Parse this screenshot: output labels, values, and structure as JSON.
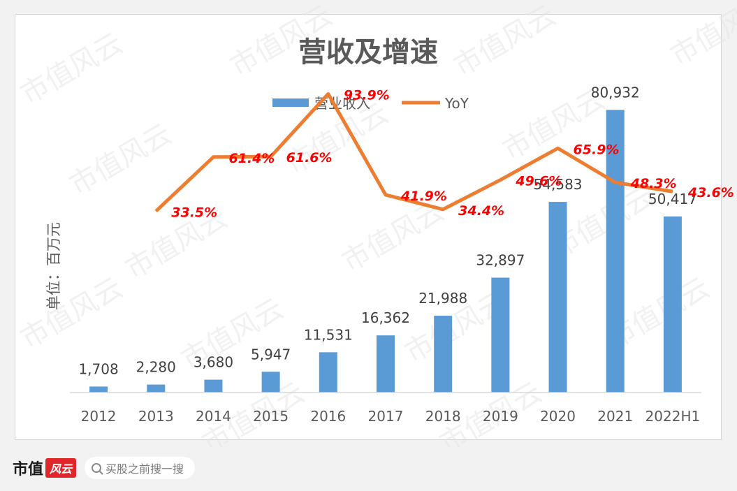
{
  "chart_data": {
    "type": "bar",
    "title": "营收及增速",
    "ylabel": "单位：百万元",
    "legend_position": "top",
    "categories": [
      "2012",
      "2013",
      "2014",
      "2015",
      "2016",
      "2017",
      "2018",
      "2019",
      "2020",
      "2021",
      "2022H1"
    ],
    "series": [
      {
        "name": "营业收入",
        "type": "bar",
        "color": "#5b9bd5",
        "values": [
          1708,
          2280,
          3680,
          5947,
          11531,
          16362,
          21988,
          32897,
          54583,
          80932,
          50417
        ],
        "labels": [
          "1,708",
          "2,280",
          "3,680",
          "5,947",
          "11,531",
          "16,362",
          "21,988",
          "32,897",
          "54,583",
          "80,932",
          "50,417"
        ]
      },
      {
        "name": "YoY",
        "type": "line",
        "color": "#ed7d31",
        "values": [
          null,
          33.5,
          61.4,
          61.6,
          93.9,
          41.9,
          34.4,
          49.6,
          65.9,
          48.3,
          43.6
        ],
        "labels": [
          null,
          "33.5%",
          "61.4%",
          "61.6%",
          "93.9%",
          "41.9%",
          "34.4%",
          "49.6%",
          "65.9%",
          "48.3%",
          "43.6%"
        ],
        "label_color": "#ff0000"
      }
    ],
    "bar_ylim": [
      0,
      100000
    ],
    "line_ylim": [
      -60,
      120
    ],
    "grid": false
  },
  "watermark": "市值风云",
  "footer": {
    "brand_text": "市值",
    "brand_mark": "风云",
    "search_text": "买股之前搜一搜"
  }
}
